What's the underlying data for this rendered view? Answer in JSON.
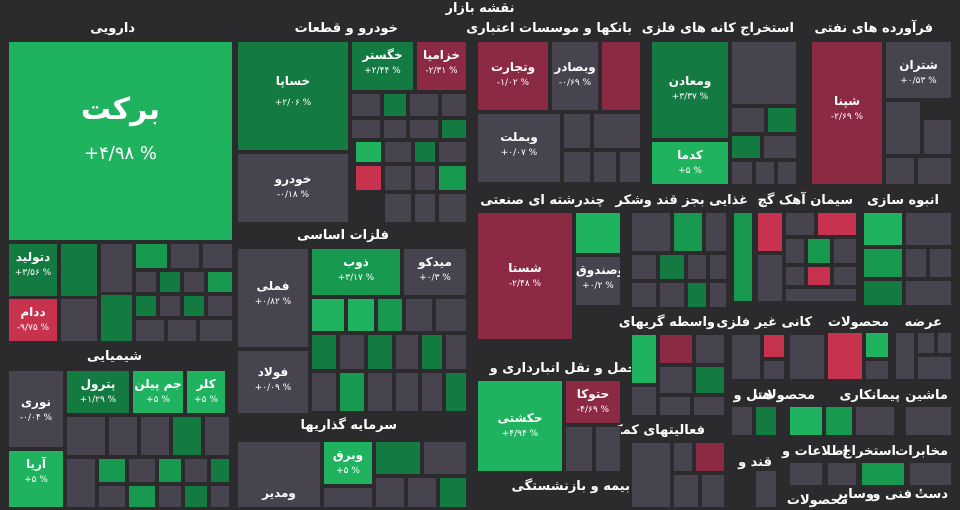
{
  "title": "نقشه بازار",
  "sections": {
    "darouei": "دارویی",
    "khodro": "خودرو و قطعات",
    "banks": "بانکها و موسسات اعتباری",
    "felezi": "استخراج کانه های فلزی",
    "naft": "فرآورده های نفتی",
    "chand": "چندرشته ای صنعتی",
    "ghaza": "غذایی بجز قند وشکر",
    "siman": "سیمان آهک گچ",
    "anbooh": "انبوه سازی",
    "felezat": "فلزات اساسی",
    "shimi": "شیمیایی",
    "vasete": "واسطه گریهای",
    "kani": "کانی غیر فلزی",
    "mahsoolat": "محصولات",
    "arze": "عرضه",
    "haml": "حمل و نقل انبارداری و",
    "mashin": "ماشین",
    "peymankari": "پیمانکاری",
    "mahsoolat2": "محصولات",
    "hotel": "هتل و",
    "faaliat": "فعالیتهای کمکی",
    "sarmaye": "سرمایه گذاریها",
    "mokhaberat": "مخابرات",
    "estekhraj": "استخراج",
    "etelaat": "اطلاعات و",
    "ghand": "قند و",
    "bime": "بیمه و بازنشستگی",
    "dast": "دستٔ",
    "fanni": "فنی و",
    "sayer": "وسایر",
    "mahsoolat3": "محصولات"
  },
  "tiles": {
    "barekat": {
      "name": "برکت",
      "pct": "+۴/۹۸ %"
    },
    "dtolid": {
      "name": "دتولید",
      "pct": "+۳/۵۶ %"
    },
    "ddam": {
      "name": "ددام",
      "pct": "-۹/۷۵ %"
    },
    "khsapa": {
      "name": "خساپا",
      "pct": "+۲/۰۶ %"
    },
    "khegostar": {
      "name": "خگستر",
      "pct": "+۲/۴۴ %"
    },
    "khzamia": {
      "name": "خزامیا",
      "pct": "-۲/۳۱ %"
    },
    "khodro": {
      "name": "خودرو",
      "pct": "-۰/۱۸ %"
    },
    "vtejarat": {
      "name": "وتجارت",
      "pct": "-۱/۰۲ %"
    },
    "vbsader": {
      "name": "وبصادر",
      "pct": "-۰/۶۹ %"
    },
    "vbmellat": {
      "name": "وبملت",
      "pct": "+۰/۰۷ %"
    },
    "vmaaden": {
      "name": "ومعادن",
      "pct": "+۳/۳۷ %"
    },
    "kdama": {
      "name": "کدما",
      "pct": "+۵ %"
    },
    "shepna": {
      "name": "شپنا",
      "pct": "-۲/۶۹ %"
    },
    "shetran": {
      "name": "شتران",
      "pct": "+۰/۵۳ %"
    },
    "shasta": {
      "name": "شستا",
      "pct": "-۲/۴۸ %"
    },
    "vsandoogh": {
      "name": "وصندوق",
      "pct": "+۰/۲ %"
    },
    "zob": {
      "name": "ذوب",
      "pct": "+۳/۱۷ %"
    },
    "midko": {
      "name": "میدکو",
      "pct": "+۰/۳ %"
    },
    "fameli": {
      "name": "فملی",
      "pct": "+۰/۸۲ %"
    },
    "foolad": {
      "name": "فولاد",
      "pct": "+۰/۰۹ %"
    },
    "noori": {
      "name": "نوری",
      "pct": "-۰/۰۴ %"
    },
    "petrol": {
      "name": "پترول",
      "pct": "+۱/۲۹ %"
    },
    "jampilen": {
      "name": "جم پیلن",
      "pct": "+۵ %"
    },
    "kalr": {
      "name": "کلر",
      "pct": "+۵ %"
    },
    "arya": {
      "name": "آریا",
      "pct": "+۵ %"
    },
    "hkeshti": {
      "name": "حکشتی",
      "pct": "+۴/۹۴ %"
    },
    "htoka": {
      "name": "حتوکا",
      "pct": "-۴/۶۹ %"
    },
    "vbargh": {
      "name": "وبرق",
      "pct": "+۵ %"
    },
    "vmadir": {
      "name": "ومدیر",
      "pct": ""
    }
  }
}
